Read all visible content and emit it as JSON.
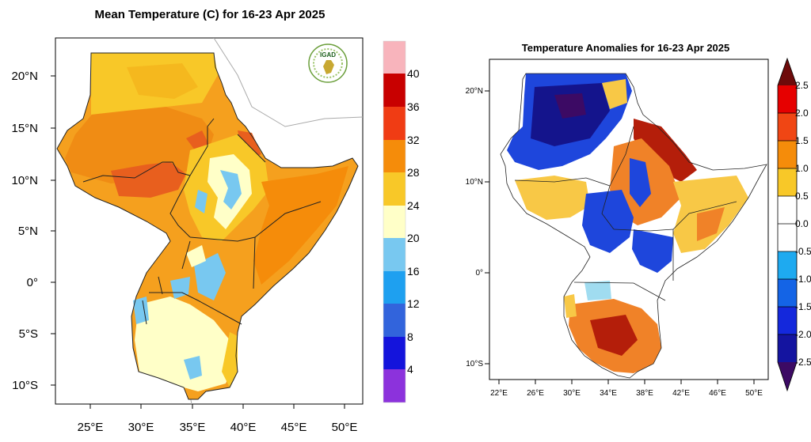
{
  "left_map": {
    "title": "Mean Temperature (C) for 16-23 Apr 2025",
    "logo_text": "IGAD",
    "lat_labels": [
      "20°N",
      "15°N",
      "10°N",
      "5°N",
      "0°",
      "5°S",
      "10°S"
    ],
    "lon_labels": [
      "25°E",
      "30°E",
      "35°E",
      "40°E",
      "45°E",
      "50°E"
    ],
    "colorbar": {
      "labels": [
        "40",
        "36",
        "32",
        "28",
        "24",
        "20",
        "16",
        "12",
        "8",
        "4"
      ],
      "colors": [
        "#f8b4bc",
        "#c80000",
        "#f03c14",
        "#f58c0a",
        "#f8c828",
        "#ffffc8",
        "#78c8f0",
        "#1ea0f0",
        "#3264dc",
        "#1414dc",
        "#8c32dc"
      ]
    },
    "colors": {
      "hot": "#f5a01e",
      "warm": "#f8c828",
      "very_hot": "#e85f1e",
      "mild": "#ffffc8",
      "cool": "#78c8f0"
    }
  },
  "right_map": {
    "title": "Temperature Anomalies for 16-23 Apr 2025",
    "lat_labels": [
      "20°N",
      "10°N",
      "0°",
      "10°S"
    ],
    "lon_labels": [
      "22°E",
      "26°E",
      "30°E",
      "34°E",
      "38°E",
      "42°E",
      "46°E",
      "50°E"
    ],
    "colorbar": {
      "labels": [
        "2.5",
        "2.0",
        "1.5",
        "1.0",
        "0.5",
        "0.0",
        "-0.5",
        "-1.0",
        "-1.5",
        "-2.0",
        "-2.5"
      ],
      "colors": [
        "#6e0a0a",
        "#e60000",
        "#f04614",
        "#f58c0a",
        "#f8c828",
        "#ffffff",
        "#ffffff",
        "#1eaaf0",
        "#1464e6",
        "#1428dc",
        "#1414a0",
        "#3c0a64"
      ]
    },
    "colors": {
      "cold": "#1e46dc",
      "very_cold": "#14148c",
      "hot": "#f08228",
      "very_hot": "#b41e0a",
      "mild_warm": "#f8c846",
      "light_blue": "#a0dcf0"
    }
  }
}
